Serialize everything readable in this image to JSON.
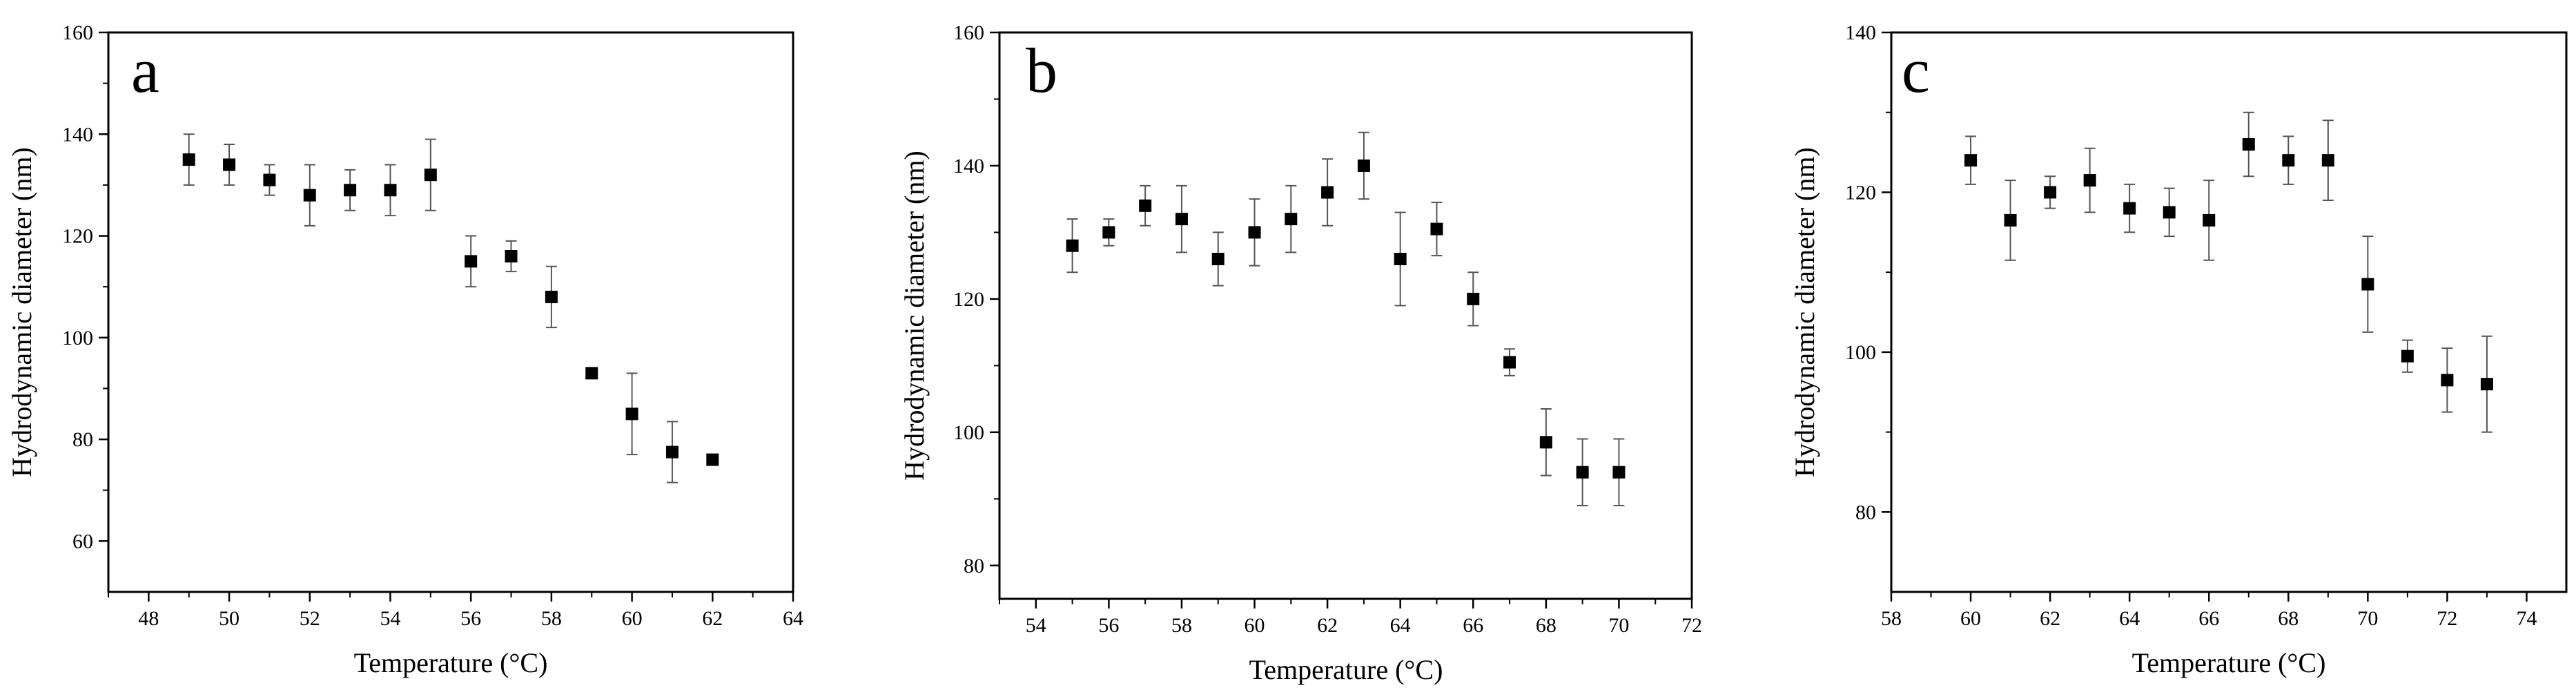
{
  "colors": {
    "axis": "#000000",
    "marker": "#000000",
    "errorbar": "#555555"
  },
  "chart_data": [
    {
      "type": "scatter",
      "panel_label": "a",
      "xlabel": "Temperature (°C)",
      "ylabel": "Hydrodynamic diameter (nm)",
      "xlim": [
        47,
        64
      ],
      "ylim": [
        50,
        160
      ],
      "xticks": [
        48,
        50,
        52,
        54,
        56,
        58,
        60,
        62,
        64
      ],
      "yticks": [
        60,
        80,
        100,
        120,
        140,
        160
      ],
      "series": [
        {
          "name": "a",
          "x": [
            49,
            50,
            51,
            52,
            53,
            54,
            55,
            56,
            57,
            58,
            59,
            60,
            61,
            62
          ],
          "y": [
            135,
            134,
            131,
            128,
            129,
            129,
            132,
            115,
            116,
            108,
            93,
            85,
            77.5,
            76
          ],
          "err": [
            5,
            4,
            3,
            6,
            4,
            5,
            7,
            5,
            3,
            6,
            0,
            8,
            6,
            0
          ]
        }
      ]
    },
    {
      "type": "scatter",
      "panel_label": "b",
      "xlabel": "Temperature (°C)",
      "ylabel": "Hydrodynamic diameter (nm)",
      "xlim": [
        53,
        72
      ],
      "ylim": [
        75,
        160
      ],
      "xticks": [
        54,
        56,
        58,
        60,
        62,
        64,
        66,
        68,
        70,
        72
      ],
      "yticks": [
        80,
        100,
        120,
        140,
        160
      ],
      "series": [
        {
          "name": "b",
          "x": [
            55,
            56,
            57,
            58,
            59,
            60,
            61,
            62,
            63,
            64,
            65,
            66,
            67,
            68,
            69,
            70
          ],
          "y": [
            128,
            130,
            134,
            132,
            126,
            130,
            132,
            136,
            140,
            126,
            130.5,
            120,
            110.5,
            98.5,
            94,
            94
          ],
          "err": [
            4,
            2,
            3,
            5,
            4,
            5,
            5,
            5,
            5,
            7,
            4,
            4,
            2,
            5,
            5,
            5
          ]
        }
      ]
    },
    {
      "type": "scatter",
      "panel_label": "c",
      "xlabel": "Temperature (°C)",
      "ylabel": "Hydrodynamic diameter (nm)",
      "xlim": [
        58,
        75
      ],
      "ylim": [
        70,
        140
      ],
      "xticks": [
        58,
        60,
        62,
        64,
        66,
        68,
        70,
        72,
        74
      ],
      "yticks": [
        80,
        100,
        120,
        140
      ],
      "series": [
        {
          "name": "c",
          "x": [
            60,
            61,
            62,
            63,
            64,
            65,
            66,
            67,
            68,
            69,
            70,
            71,
            72,
            73
          ],
          "y": [
            124,
            116.5,
            120,
            121.5,
            118,
            117.5,
            116.5,
            126,
            124,
            124,
            108.5,
            99.5,
            96.5,
            96
          ],
          "err": [
            3,
            5,
            2,
            4,
            3,
            3,
            5,
            4,
            3,
            5,
            6,
            2,
            4,
            6
          ]
        }
      ]
    }
  ]
}
